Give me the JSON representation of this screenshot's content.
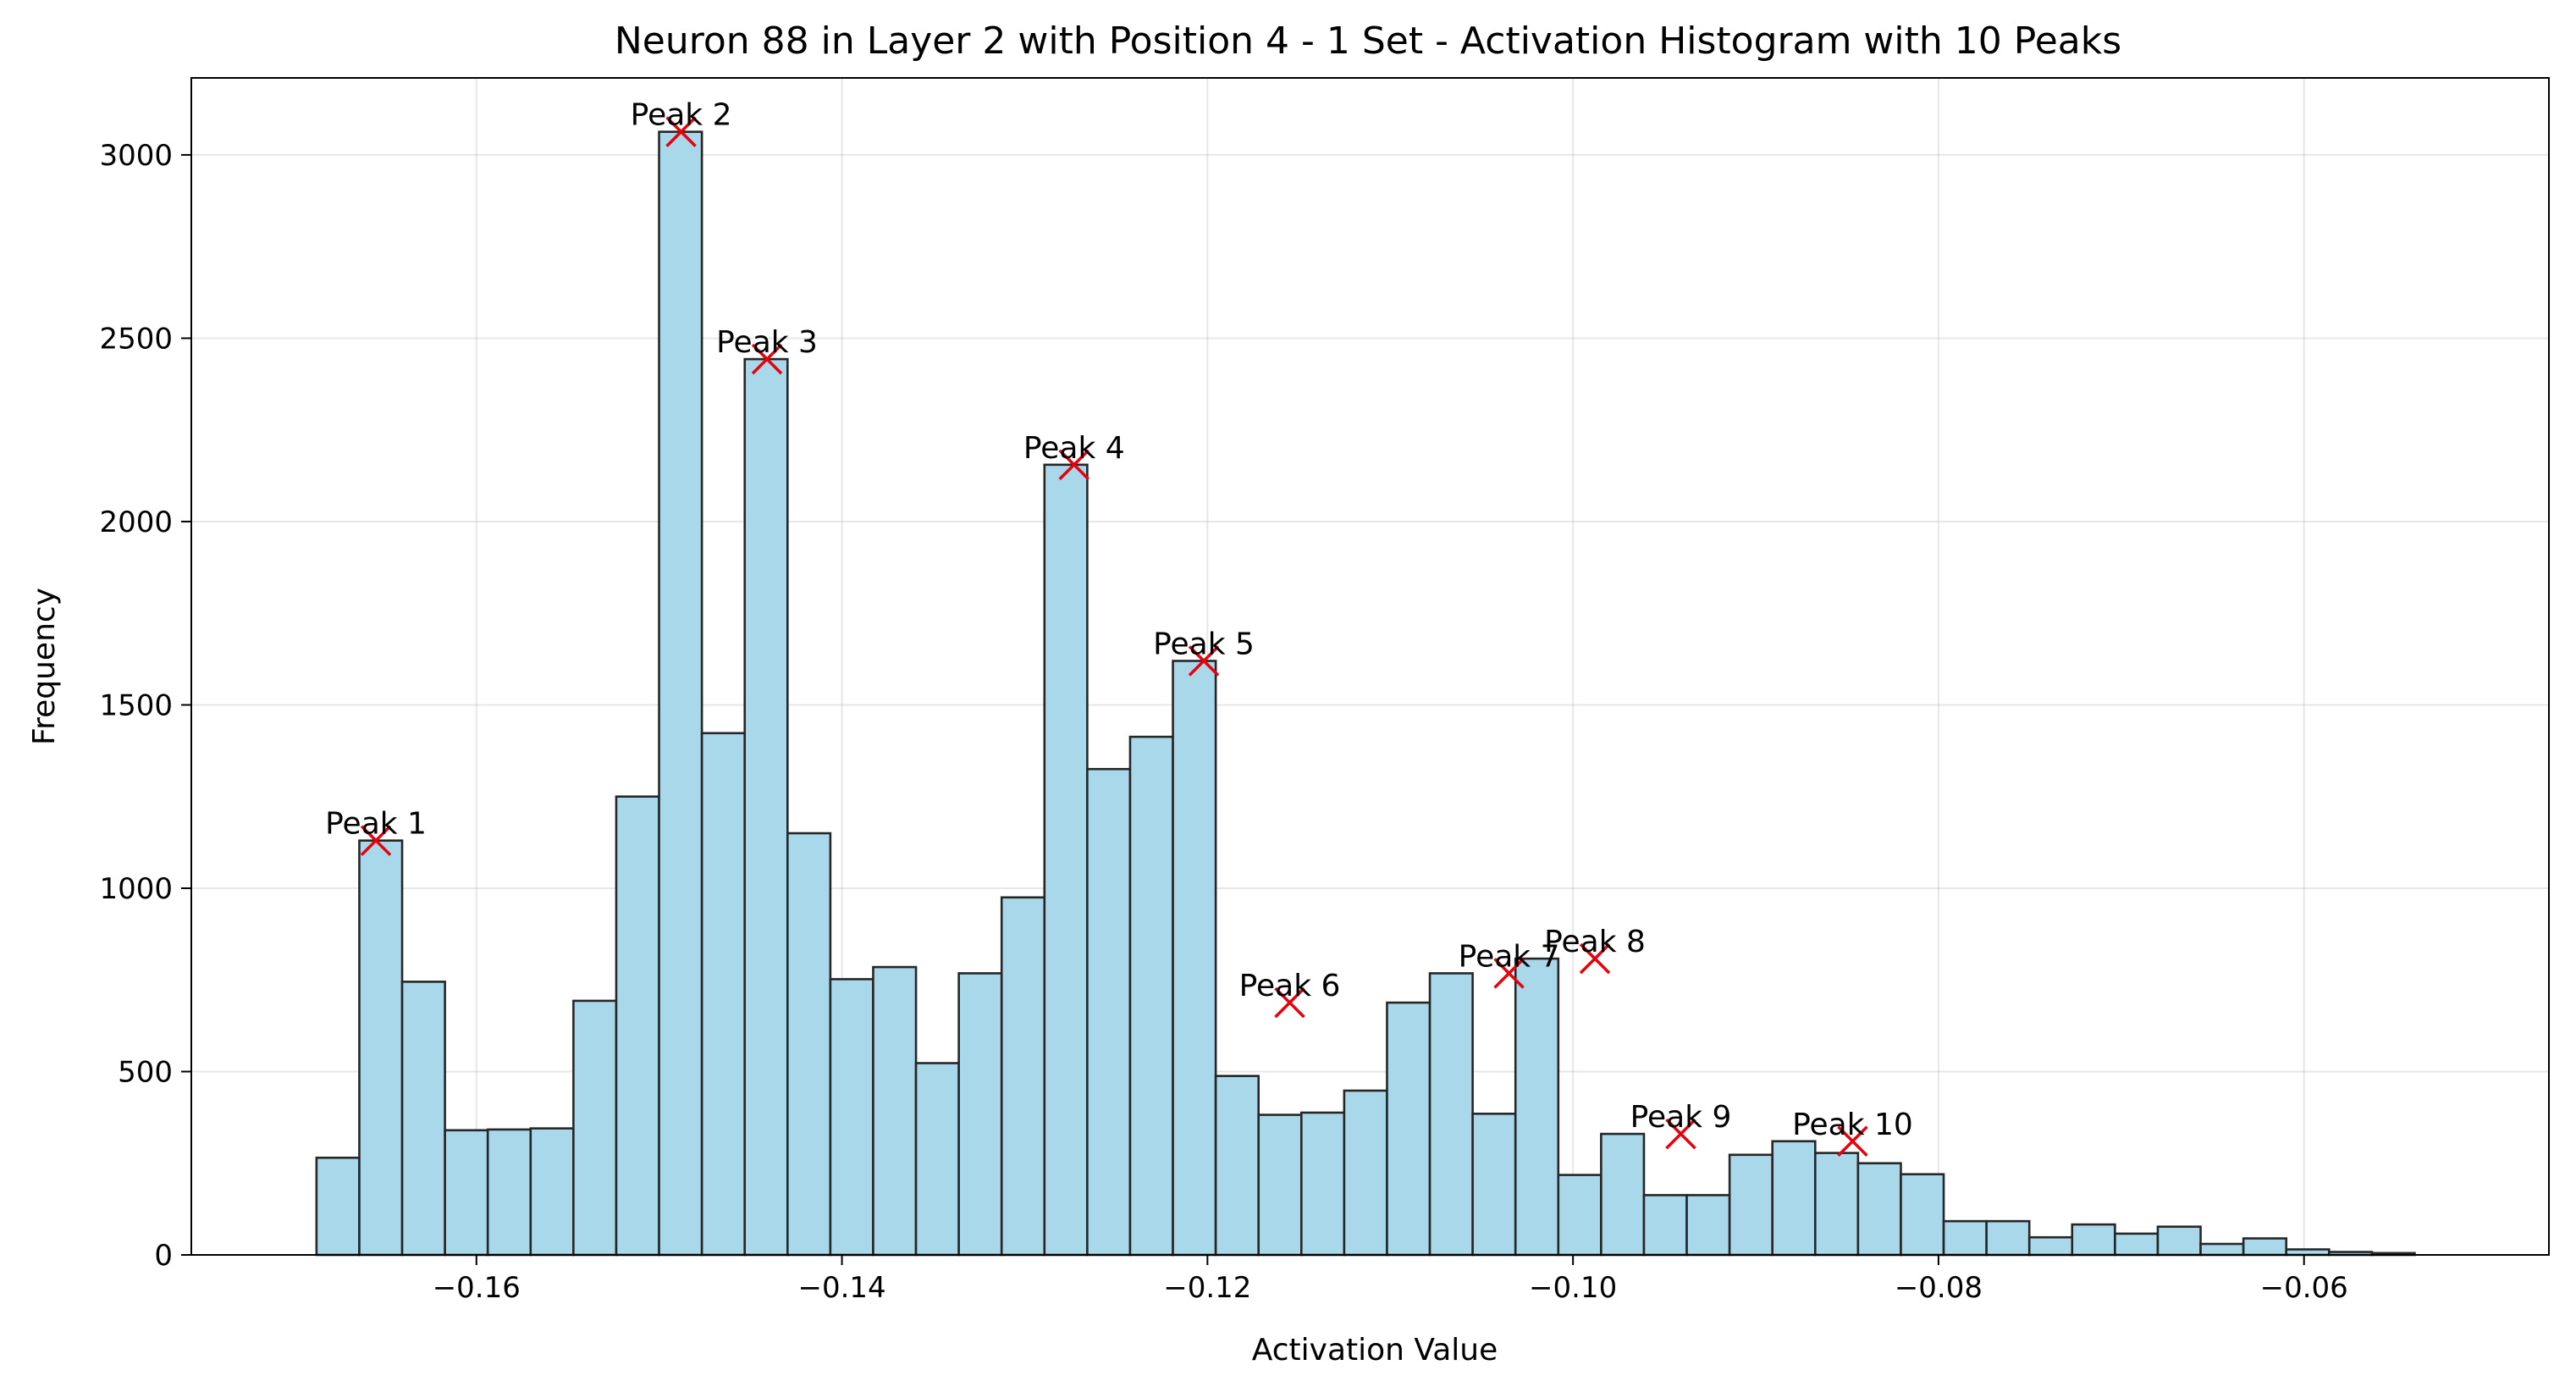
{
  "chart_data": {
    "type": "bar",
    "title": "Neuron 88 in Layer 2 with Position 4 - 1 Set - Activation Histogram with 10 Peaks",
    "xlabel": "Activation Value",
    "ylabel": "Frequency",
    "xlim": [
      -0.1756,
      -0.0466
    ],
    "ylim": [
      0,
      3210
    ],
    "x_ticks": [
      -0.16,
      -0.14,
      -0.12,
      -0.1,
      -0.08,
      -0.06
    ],
    "x_tick_labels": [
      "−0.16",
      "−0.14",
      "−0.12",
      "−0.10",
      "−0.08",
      "−0.06"
    ],
    "y_ticks": [
      0,
      500,
      1000,
      1500,
      2000,
      2500,
      3000
    ],
    "y_tick_labels": [
      "0",
      "500",
      "1000",
      "1500",
      "2000",
      "2500",
      "3000"
    ],
    "grid": true,
    "bin_start": -0.16875,
    "bin_width": 0.002343,
    "values": [
      265,
      1130,
      745,
      340,
      342,
      345,
      693,
      1250,
      3063,
      1423,
      2443,
      1150,
      752,
      785,
      523,
      768,
      975,
      2155,
      1325,
      1413,
      1620,
      488,
      382,
      388,
      448,
      688,
      768,
      385,
      808,
      218,
      330,
      163,
      163,
      273,
      310,
      278,
      250,
      220,
      92,
      92,
      48,
      83,
      58,
      77,
      30,
      45,
      15,
      8,
      5,
      0
    ],
    "peaks": [
      {
        "label": "Peak 1",
        "x": -0.1655,
        "y": 1130
      },
      {
        "label": "Peak 2",
        "x": -0.1488,
        "y": 3063
      },
      {
        "label": "Peak 3",
        "x": -0.1441,
        "y": 2443
      },
      {
        "label": "Peak 4",
        "x": -0.1273,
        "y": 2155
      },
      {
        "label": "Peak 5",
        "x": -0.1202,
        "y": 1620
      },
      {
        "label": "Peak 6",
        "x": -0.1155,
        "y": 688
      },
      {
        "label": "Peak 7",
        "x": -0.1035,
        "y": 768
      },
      {
        "label": "Peak 8",
        "x": -0.0988,
        "y": 808
      },
      {
        "label": "Peak 9",
        "x": -0.0941,
        "y": 330
      },
      {
        "label": "Peak 10",
        "x": -0.0847,
        "y": 310
      }
    ],
    "bar_color": "#A8D8EA",
    "bar_edge_color": "#262626",
    "peak_marker_color": "#E8000B"
  }
}
